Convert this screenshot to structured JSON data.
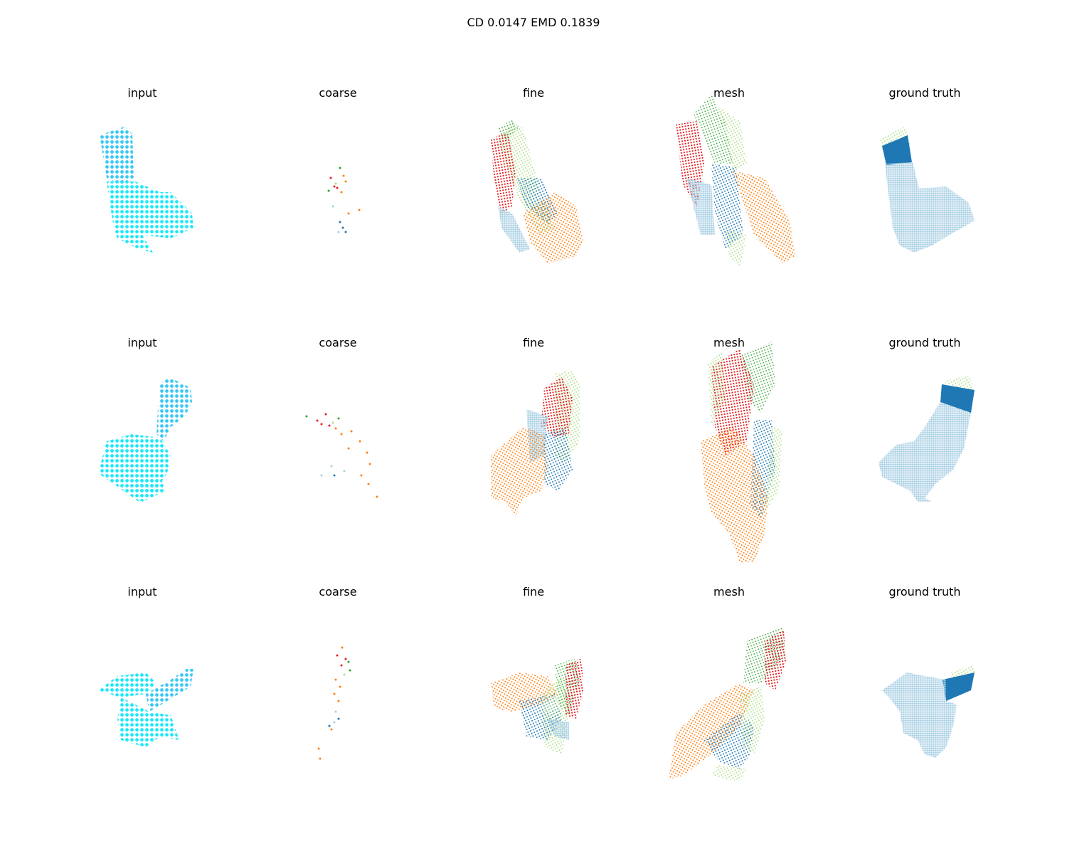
{
  "figure": {
    "title": "CD 0.0147  EMD 0.1839"
  },
  "panel_titles": [
    "input",
    "coarse",
    "fine",
    "mesh",
    "ground truth"
  ],
  "rows": [
    {
      "titles": [
        "input",
        "coarse",
        "fine",
        "mesh",
        "ground truth"
      ]
    },
    {
      "titles": [
        "input",
        "coarse",
        "fine",
        "mesh",
        "ground truth"
      ]
    },
    {
      "titles": [
        "input",
        "coarse",
        "fine",
        "mesh",
        "ground truth"
      ]
    }
  ],
  "colors": {
    "input": "#1ee8f8",
    "input_alt": "#3ac8f5",
    "orange": "#ff7f0e",
    "red": "#e31a1c",
    "green": "#2ca02c",
    "light_green": "#b2df8a",
    "blue": "#1f78b4",
    "light_blue": "#a6cee3",
    "pink": "#fb9a99",
    "purple": "#8c6bb1"
  }
}
